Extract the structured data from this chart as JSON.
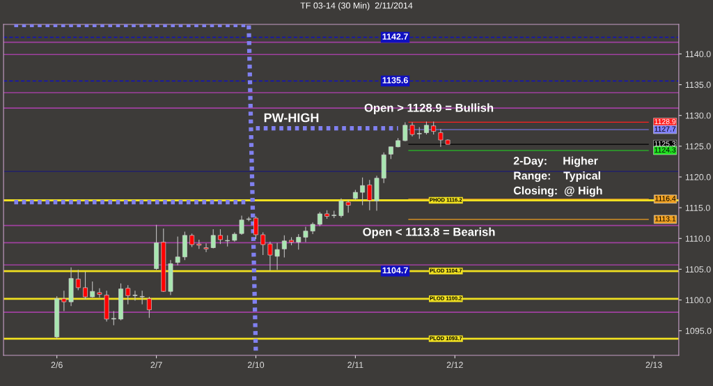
{
  "chart_data": {
    "type": "candlestick",
    "title": "TF 03-14 (30 Min)  2/11/2014",
    "categories": [
      null,
      null,
      null,
      null,
      null,
      null,
      null,
      "2/6",
      null,
      null,
      null,
      null,
      null,
      null,
      null,
      null,
      null,
      null,
      null,
      null,
      null,
      "2/7",
      null,
      null,
      null,
      null,
      null,
      null,
      null,
      null,
      null,
      null,
      null,
      null,
      null,
      "2/10",
      null,
      null,
      null,
      null,
      null,
      null,
      null,
      null,
      null,
      null,
      null,
      null,
      null,
      "2/11",
      null,
      null,
      null,
      null,
      null,
      null,
      null,
      null,
      null,
      null,
      null,
      null,
      null,
      "2/12",
      null,
      null,
      null,
      null,
      null,
      null,
      null,
      null,
      null,
      null,
      null,
      null,
      null,
      null,
      null,
      null,
      null,
      null,
      null,
      null,
      null,
      null,
      null,
      null,
      null,
      null,
      null,
      "2/13",
      null,
      null,
      null
    ],
    "ohlc": [
      null,
      null,
      null,
      null,
      null,
      null,
      null,
      [
        1094.0,
        1100.6,
        1093.7,
        1100.2
      ],
      [
        1100.2,
        1101.5,
        1098.2,
        1099.7
      ],
      [
        1099.7,
        1105.3,
        1099.0,
        1103.5
      ],
      [
        1103.4,
        1104.9,
        1101.6,
        1102.0
      ],
      [
        1102.0,
        1104.6,
        1100.1,
        1100.5
      ],
      [
        1100.5,
        1103.0,
        1100.4,
        1101.4
      ],
      [
        1101.2,
        1101.9,
        1100.4,
        1100.9
      ],
      [
        1100.8,
        1101.5,
        1096.5,
        1096.9
      ],
      [
        1096.9,
        1098.2,
        1095.9,
        1097.0
      ],
      [
        1096.9,
        1102.7,
        1096.7,
        1101.8
      ],
      [
        1101.9,
        1102.4,
        1099.3,
        1100.7
      ],
      [
        1100.7,
        1101.5,
        1099.9,
        1100.8
      ],
      [
        1100.5,
        1101.5,
        1099.3,
        1100.5
      ],
      [
        1100.2,
        1100.5,
        1097.1,
        1098.4
      ],
      [
        1105.1,
        1112.2,
        1104.9,
        1109.3
      ],
      [
        1109.4,
        1111.6,
        1101.3,
        1101.4
      ],
      [
        1101.4,
        1106.5,
        1100.8,
        1105.9
      ],
      [
        1106.1,
        1110.3,
        1105.6,
        1107.0
      ],
      [
        1107.0,
        1111.1,
        1106.5,
        1110.5
      ],
      [
        1110.5,
        1110.8,
        1108.6,
        1109.0
      ],
      [
        1109.1,
        1109.8,
        1108.3,
        1108.9
      ],
      [
        1108.5,
        1109.2,
        1107.8,
        1108.3
      ],
      [
        1108.5,
        1111.5,
        1108.4,
        1110.5
      ],
      [
        1110.5,
        1111.5,
        1109.1,
        1109.8
      ],
      [
        1109.6,
        1110.5,
        1108.7,
        1109.6
      ],
      [
        1109.7,
        1111.0,
        1109.5,
        1110.7
      ],
      [
        1110.8,
        1113.7,
        1110.6,
        1113.0
      ],
      [
        1113.1,
        1113.5,
        1112.8,
        1113.1
      ],
      [
        1113.3,
        1113.6,
        1109.9,
        1110.6
      ],
      [
        1110.6,
        1111.0,
        1107.3,
        1109.0
      ],
      [
        1109.1,
        1109.5,
        1104.8,
        1107.3
      ],
      [
        1107.1,
        1109.3,
        1104.9,
        1108.2
      ],
      [
        1108.3,
        1110.5,
        1106.9,
        1109.6
      ],
      [
        1109.7,
        1110.2,
        1108.9,
        1109.4
      ],
      [
        1109.4,
        1110.7,
        1108.2,
        1110.2
      ],
      [
        1110.2,
        1111.9,
        1109.4,
        1111.2
      ],
      [
        1111.2,
        1112.6,
        1110.7,
        1112.3
      ],
      [
        1112.3,
        1114.3,
        1112.0,
        1114.0
      ],
      [
        1114.0,
        1114.6,
        1113.2,
        1113.6
      ],
      [
        1113.7,
        1114.5,
        1113.3,
        1113.8
      ],
      [
        1113.7,
        1116.5,
        1113.4,
        1116.1
      ],
      [
        1115.9,
        1116.3,
        1114.2,
        1115.4
      ],
      [
        1116.5,
        1117.9,
        1116.3,
        1117.5
      ],
      [
        1117.5,
        1119.9,
        1115.4,
        1118.6
      ],
      [
        1118.7,
        1119.5,
        1114.6,
        1116.2
      ],
      [
        1116.1,
        1120.2,
        1114.5,
        1119.8
      ],
      [
        1119.8,
        1124.0,
        1119.0,
        1123.6
      ],
      [
        1123.7,
        1124.9,
        1122.9,
        1124.9
      ],
      [
        1124.9,
        1126.3,
        1124.8,
        1125.9
      ],
      [
        1125.9,
        1128.9,
        1125.8,
        1128.4
      ],
      [
        1128.4,
        1128.9,
        1126.6,
        1126.9
      ],
      [
        1127.0,
        1128.1,
        1126.2,
        1127.0
      ],
      [
        1127.2,
        1129.0,
        1126.9,
        1128.4
      ],
      [
        1128.3,
        1129.0,
        1126.9,
        1127.4
      ],
      [
        1127.2,
        1127.8,
        1124.9,
        1126.0
      ],
      [
        1126.0,
        1126.1,
        1125.3,
        1125.3
      ],
      null,
      null,
      null,
      null,
      null,
      null,
      null,
      null,
      null,
      null,
      null,
      null,
      null,
      null,
      null,
      null,
      null,
      null,
      null,
      null,
      null,
      null,
      null,
      null,
      null,
      null,
      null,
      null,
      null,
      null,
      null,
      null
    ],
    "colors": [
      null,
      null,
      null,
      null,
      null,
      null,
      null,
      "#a8e6b0",
      "#ff0000",
      "#a8e6b0",
      "#ff0000",
      "#ff0000",
      "#a8e6b0",
      "#ff0000",
      "#ff0000",
      "#a8e6b0",
      "#a8e6b0",
      "#ff0000",
      "#a8e6b0",
      "#a8e6b0",
      "#ff0000",
      "#a8e6b0",
      "#ff0000",
      "#a8e6b0",
      "#a8e6b0",
      "#a8e6b0",
      "#ff0000",
      "#ff0000",
      "#ff0000",
      "#a8e6b0",
      "#ff0000",
      "#a8e6b0",
      "#a8e6b0",
      "#a8e6b0",
      "#a8e6b0",
      "#ff0000",
      "#ff0000",
      "#ff0000",
      "#a8e6b0",
      "#a8e6b0",
      "#ff0000",
      "#a8e6b0",
      "#a8e6b0",
      "#a8e6b0",
      "#a8e6b0",
      "#ff0000",
      "#a8e6b0",
      "#a8e6b0",
      "#ff0000",
      "#a8e6b0",
      "#a8e6b0",
      "#ff0000",
      "#a8e6b0",
      "#a8e6b0",
      "#a8e6b0",
      "#a8e6b0",
      "#a8e6b0",
      "#ff0000",
      "#a8e6b0",
      "#a8e6b0",
      "#ff0000",
      "#ff0000",
      "#ff0000",
      null,
      null,
      null,
      null,
      null,
      null,
      null,
      null,
      null,
      null,
      null,
      null,
      null,
      null,
      null,
      null,
      null,
      null,
      null,
      null,
      null,
      null,
      null,
      null,
      null,
      null,
      null,
      null,
      null,
      null,
      null,
      null
    ],
    "series": [
      {
        "type": "line",
        "color": "#8080f0",
        "line_style": "dotted",
        "values": [
          null,
          1115.9,
          1115.9,
          1115.9,
          1115.9,
          1115.9,
          1115.9,
          1115.9,
          1115.9,
          1115.9,
          1115.9,
          1115.9,
          1115.9,
          1115.9,
          1115.9,
          1115.9,
          1115.9,
          1115.9,
          1115.9,
          1115.9,
          1115.9,
          1115.9,
          1115.9,
          1115.9,
          1115.9,
          1115.9,
          1115.9,
          1115.9,
          1115.9,
          1115.9,
          1115.9,
          1115.9,
          1115.9,
          1115.9,
          1115.9,
          null,
          null,
          null,
          null,
          null,
          null,
          null,
          null,
          null,
          null,
          null,
          null,
          null,
          null,
          null,
          null,
          null,
          null,
          null,
          null,
          null,
          null,
          null,
          null,
          null,
          null,
          null,
          null,
          null,
          null,
          null,
          null,
          null,
          null,
          null,
          null,
          null,
          null,
          null,
          null,
          null,
          null,
          null,
          null,
          null,
          null,
          null,
          null,
          null,
          null,
          null,
          null,
          null,
          null,
          null,
          null,
          null,
          null,
          null,
          null
        ]
      },
      {
        "type": "line",
        "color": "#8080f0",
        "line_style": "dotted",
        "values": [
          null,
          1144.7,
          1144.7,
          1144.7,
          1144.7,
          1144.7,
          1144.7,
          1144.7,
          1144.7,
          1144.7,
          1144.7,
          1144.7,
          1144.7,
          1144.7,
          1144.7,
          1144.7,
          1144.7,
          1144.7,
          1144.7,
          1144.7,
          1144.7,
          1144.7,
          1144.7,
          1144.7,
          1144.7,
          1144.7,
          1144.7,
          1144.7,
          1144.7,
          1144.7,
          1144.7,
          1144.7,
          1144.7,
          1144.7,
          1144.7,
          1091.2,
          null,
          null,
          null,
          null,
          null,
          null,
          null,
          null,
          null,
          null,
          null,
          null,
          null,
          null,
          null,
          null,
          null,
          null,
          null,
          null,
          null,
          null,
          null,
          null,
          null,
          null,
          null,
          null,
          null,
          null,
          null,
          null,
          null,
          null,
          null,
          null,
          null,
          null,
          null,
          null,
          null,
          null,
          null,
          null,
          null,
          null,
          null,
          null,
          null,
          null,
          null,
          null,
          null,
          null,
          null,
          null,
          null,
          null,
          null
        ]
      },
      {
        "name": "PW-HIGH",
        "type": "line",
        "color": "#8080f0",
        "line_style": "dotted",
        "values": [
          null,
          null,
          null,
          null,
          null,
          null,
          null,
          null,
          null,
          null,
          null,
          null,
          null,
          null,
          null,
          null,
          null,
          null,
          null,
          null,
          null,
          null,
          null,
          null,
          null,
          null,
          null,
          null,
          null,
          null,
          null,
          null,
          null,
          null,
          null,
          1127.9,
          1127.9,
          1127.9,
          1127.9,
          1127.9,
          1127.9,
          1127.9,
          1127.9,
          1127.9,
          1127.9,
          1127.9,
          1127.9,
          1127.9,
          1127.9,
          1127.9,
          1127.9,
          1127.9,
          1127.9,
          1127.9,
          1127.9,
          1127.9,
          null,
          null,
          null,
          null,
          null,
          null,
          null,
          null,
          null,
          null,
          null,
          null,
          null,
          null,
          null,
          null,
          null,
          null,
          null,
          null,
          null,
          null,
          null,
          null,
          null,
          null,
          null,
          null,
          null,
          null,
          null,
          null,
          null,
          null,
          null,
          null,
          null,
          null,
          null
        ]
      }
    ],
    "ylim": [
      1091,
      1144.8
    ],
    "yticks": [
      {
        "value": 1095,
        "label": "1095.0"
      },
      {
        "value": 1100,
        "label": "1100.0"
      },
      {
        "value": 1105,
        "label": "1105.0"
      },
      {
        "value": 1110,
        "label": "1110.0"
      },
      {
        "value": 1115,
        "label": "1115.0"
      },
      {
        "value": 1120,
        "label": "1120.0"
      },
      {
        "value": 1125,
        "label": "1125.0"
      },
      {
        "value": 1130,
        "label": "1130.0"
      },
      {
        "value": 1135,
        "label": "1135.0"
      },
      {
        "value": 1140,
        "label": "1140.0"
      }
    ],
    "ref_lines": [
      {
        "axis": "y",
        "value": 1141.9,
        "color": "#a040a0",
        "line_style": "solid"
      },
      {
        "axis": "y",
        "value": 1139.9,
        "color": "#a040a0",
        "line_style": "solid"
      },
      {
        "axis": "y",
        "value": 1133.7,
        "color": "#a040a0",
        "line_style": "solid"
      },
      {
        "axis": "y",
        "value": 1131.2,
        "color": "#a040a0",
        "line_style": "solid"
      },
      {
        "axis": "y",
        "value": 1112.1,
        "color": "#a040a0",
        "line_style": "solid"
      },
      {
        "axis": "y",
        "value": 1109.3,
        "color": "#a040a0",
        "line_style": "solid"
      },
      {
        "axis": "y",
        "value": 1105.7,
        "color": "#a040a0",
        "line_style": "solid"
      },
      {
        "axis": "y",
        "value": 1098.0,
        "color": "#a040a0",
        "line_style": "solid"
      },
      {
        "axis": "y",
        "value": 1120.9,
        "color": "#20206a",
        "line_style": "solid"
      },
      {
        "axis": "y",
        "value": 1142.7,
        "label": "1142.7",
        "color": "#1010c0",
        "line_style": "dashed"
      },
      {
        "axis": "y",
        "value": 1135.6,
        "label": "1135.6",
        "color": "#1010c0",
        "line_style": "dashed"
      },
      {
        "axis": "y",
        "value": 1116.2,
        "label": "PHOD 1116.2",
        "color": "#f0e020",
        "line_style": "solid"
      },
      {
        "axis": "y",
        "value": 1104.7,
        "label": "PLOD 1104.7",
        "color": "#f0e020",
        "line_style": "solid"
      },
      {
        "axis": "y",
        "value": 1100.2,
        "label": "PLOD 1100.2",
        "color": "#f0e020",
        "line_style": "solid"
      },
      {
        "axis": "y",
        "value": 1093.7,
        "label": "PLOD 1093.7",
        "color": "#f0e020",
        "line_style": "solid"
      },
      {
        "axis": "y",
        "value": 1128.9,
        "label": "1128.9",
        "color": "#ff2020"
      },
      {
        "axis": "y",
        "value": 1127.7,
        "label": "1127.7",
        "color": "#8080ff"
      },
      {
        "axis": "y",
        "value": 1125.3,
        "label": "1125.3",
        "color": "#000000"
      },
      {
        "axis": "y",
        "value": 1124.3,
        "label": "1124.3",
        "color": "#20e020"
      },
      {
        "axis": "y",
        "value": 1116.4,
        "label": "1116.4",
        "color": "#f0a020"
      },
      {
        "axis": "y",
        "value": 1113.1,
        "label": "1113.1",
        "color": "#f0a020"
      }
    ],
    "annotations": [
      "Open > 1128.9 = Bullish",
      "Open < 1113.8 = Bearish",
      "2-Day:     Higher",
      "Range:    Typical",
      "Closing:  @ High",
      {
        "text": "1104.7",
        "y": 1104.7
      }
    ],
    "grid": false
  }
}
